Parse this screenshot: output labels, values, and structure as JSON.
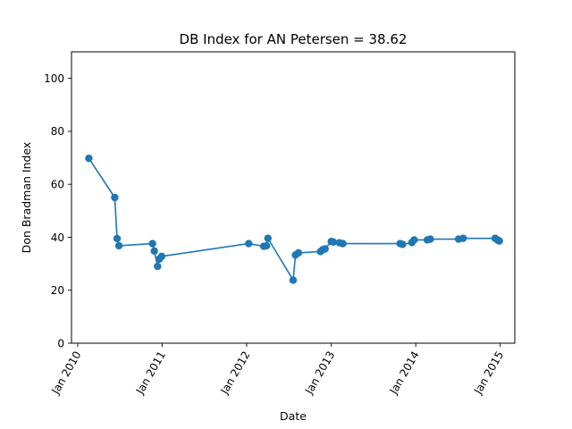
{
  "chart_data": {
    "type": "line",
    "title": "DB Index for AN Petersen = 38.62",
    "xlabel": "Date",
    "ylabel": "Don Bradman Index",
    "ylim": [
      0,
      110
    ],
    "xlim": [
      "2009-12-05",
      "2015-03-05"
    ],
    "yticks": [
      0,
      20,
      40,
      60,
      80,
      100
    ],
    "xticks": [
      {
        "date": "2010-01-01",
        "label": "Jan 2010"
      },
      {
        "date": "2011-01-01",
        "label": "Jan 2011"
      },
      {
        "date": "2012-01-01",
        "label": "Jan 2012"
      },
      {
        "date": "2013-01-01",
        "label": "Jan 2013"
      },
      {
        "date": "2014-01-01",
        "label": "Jan 2014"
      },
      {
        "date": "2015-01-01",
        "label": "Jan 2015"
      }
    ],
    "grid": false,
    "color": "#1f77b4",
    "series": [
      {
        "points": [
          {
            "x": "2010-02-18",
            "y": 69.8
          },
          {
            "x": "2010-06-10",
            "y": 55.0
          },
          {
            "x": "2010-06-20",
            "y": 39.5
          },
          {
            "x": "2010-06-28",
            "y": 36.8
          },
          {
            "x": "2010-11-20",
            "y": 37.6
          },
          {
            "x": "2010-11-28",
            "y": 34.8
          },
          {
            "x": "2010-12-12",
            "y": 29.0
          },
          {
            "x": "2010-12-20",
            "y": 31.8
          },
          {
            "x": "2010-12-30",
            "y": 32.8
          },
          {
            "x": "2012-01-10",
            "y": 37.6
          },
          {
            "x": "2012-03-15",
            "y": 36.6
          },
          {
            "x": "2012-03-27",
            "y": 36.8
          },
          {
            "x": "2012-04-02",
            "y": 39.6
          },
          {
            "x": "2012-07-20",
            "y": 23.8
          },
          {
            "x": "2012-07-30",
            "y": 33.3
          },
          {
            "x": "2012-08-12",
            "y": 34.1
          },
          {
            "x": "2012-11-15",
            "y": 34.6
          },
          {
            "x": "2012-11-25",
            "y": 35.3
          },
          {
            "x": "2012-12-05",
            "y": 35.6
          },
          {
            "x": "2013-01-01",
            "y": 38.4
          },
          {
            "x": "2013-01-10",
            "y": 38.2
          },
          {
            "x": "2013-02-05",
            "y": 37.9
          },
          {
            "x": "2013-02-20",
            "y": 37.6
          },
          {
            "x": "2013-10-25",
            "y": 37.6
          },
          {
            "x": "2013-11-05",
            "y": 37.3
          },
          {
            "x": "2013-12-15",
            "y": 38.0
          },
          {
            "x": "2013-12-25",
            "y": 39.0
          },
          {
            "x": "2014-02-20",
            "y": 39.0
          },
          {
            "x": "2014-03-05",
            "y": 39.3
          },
          {
            "x": "2014-07-05",
            "y": 39.3
          },
          {
            "x": "2014-07-25",
            "y": 39.6
          },
          {
            "x": "2014-12-10",
            "y": 39.6
          },
          {
            "x": "2014-12-20",
            "y": 39.0
          },
          {
            "x": "2014-12-28",
            "y": 38.6
          }
        ]
      }
    ]
  }
}
